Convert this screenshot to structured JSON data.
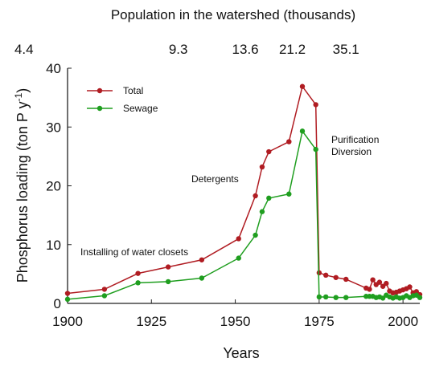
{
  "chart_data": {
    "type": "line",
    "title": "Population in the watershed (thousands)",
    "top_ticks": [
      {
        "value": 1887,
        "label": "4.4"
      },
      {
        "value": 1933,
        "label": "9.3"
      },
      {
        "value": 1953,
        "label": "13.6"
      },
      {
        "value": 1967,
        "label": "21.2"
      },
      {
        "value": 1983,
        "label": "35.1"
      }
    ],
    "xlabel": "Years",
    "ylabel": [
      "Phosphorus loading (ton P y",
      "-1",
      ")"
    ],
    "x": [
      1900,
      1911,
      1921,
      1930,
      1940,
      1951,
      1956,
      1958,
      1960,
      1966,
      1970,
      1974,
      1975,
      1977,
      1980,
      1983,
      1989,
      1990,
      1991,
      1992,
      1993,
      1994,
      1995,
      1996,
      1997,
      1998,
      1999,
      2000,
      2001,
      2002,
      2003,
      2004,
      2005
    ],
    "series": [
      {
        "name": "Total",
        "color": "#b01c22",
        "values": [
          1.7,
          2.4,
          5.1,
          6.2,
          7.4,
          11,
          18.3,
          23.2,
          25.8,
          27.5,
          36.9,
          33.8,
          5.2,
          4.8,
          4.4,
          4.1,
          2.6,
          2.4,
          4,
          3.2,
          3.6,
          2.9,
          3.4,
          2.1,
          1.8,
          1.9,
          2.1,
          2.3,
          2.5,
          2.8,
          1.8,
          2.0,
          1.5
        ]
      },
      {
        "name": "Sewage",
        "color": "#1f9e1f",
        "values": [
          0.7,
          1.3,
          3.5,
          3.7,
          4.3,
          7.7,
          11.6,
          15.6,
          17.9,
          18.6,
          29.3,
          26.2,
          1.1,
          1.1,
          1.0,
          1.0,
          1.2,
          1.2,
          1.2,
          1.0,
          1.1,
          0.9,
          1.4,
          1.1,
          0.9,
          1.1,
          0.9,
          1.0,
          1.3,
          1.0,
          1.3,
          1.4,
          1.0
        ]
      }
    ],
    "annotations": [
      "Installing of water closets",
      "Detergents",
      "Purification",
      "Diversion"
    ],
    "xlim": [
      1900,
      2005
    ],
    "ylim": [
      0,
      40
    ],
    "xticks": [
      1900,
      1925,
      1950,
      1975,
      2000
    ],
    "yticks": [
      0,
      10,
      20,
      30,
      40
    ],
    "legend": "upper left"
  }
}
